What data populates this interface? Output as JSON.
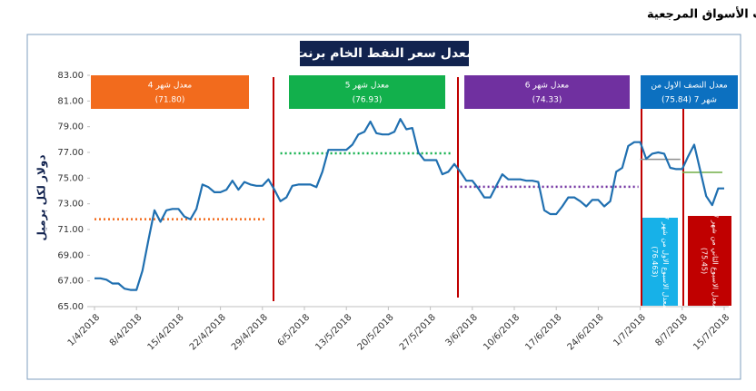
{
  "header": "النشرة الأسبوعية  لأسعار النفط الخام برنت ومشتقاته حسب الأسواق المرجعية",
  "chart_data": {
    "type": "line",
    "title": "معدل سعر النفط الخام  برنت",
    "ylabel": "دولار لكل برميل",
    "color": "#1f6fb0",
    "categories": [
      "1/4/2018",
      null,
      null,
      null,
      null,
      null,
      null,
      "8/4/2018",
      null,
      null,
      null,
      null,
      null,
      null,
      "15/4/2018",
      null,
      null,
      null,
      null,
      null,
      null,
      "22/4/2018",
      null,
      null,
      null,
      null,
      null,
      null,
      "29/4/2018",
      null,
      null,
      null,
      null,
      null,
      null,
      "6/5/2018",
      null,
      null,
      null,
      null,
      null,
      null,
      "13/5/2018",
      null,
      null,
      null,
      null,
      null,
      null,
      "20/5/2018",
      null,
      null,
      null,
      null,
      null,
      null,
      "27/5/2018",
      null,
      null,
      null,
      null,
      null,
      null,
      "3/6/2018",
      null,
      null,
      null,
      null,
      null,
      null,
      "10/6/2018",
      null,
      null,
      null,
      null,
      null,
      null,
      "17/6/2018",
      null,
      null,
      null,
      null,
      null,
      null,
      "24/6/2018",
      null,
      null,
      null,
      null,
      null,
      null,
      "1/7/2018",
      null,
      null,
      null,
      null,
      null,
      null,
      "8/7/2018",
      null,
      null,
      null,
      null,
      null,
      null,
      "15/7/2018"
    ],
    "values": [
      67.2,
      67.2,
      67.1,
      66.8,
      66.8,
      66.4,
      66.3,
      66.3,
      67.8,
      70.2,
      72.5,
      71.6,
      72.5,
      72.6,
      72.6,
      72.0,
      71.8,
      72.6,
      74.5,
      74.3,
      73.9,
      73.9,
      74.1,
      74.8,
      74.1,
      74.7,
      74.5,
      74.4,
      74.4,
      74.9,
      74.1,
      73.2,
      73.5,
      74.4,
      74.5,
      74.5,
      74.5,
      74.3,
      75.5,
      77.2,
      77.2,
      77.2,
      77.2,
      77.6,
      78.4,
      78.6,
      79.4,
      78.5,
      78.4,
      78.4,
      78.6,
      79.6,
      78.8,
      78.9,
      77.0,
      76.4,
      76.4,
      76.4,
      75.3,
      75.5,
      76.1,
      75.5,
      74.8,
      74.8,
      74.2,
      73.5,
      73.5,
      74.4,
      75.3,
      74.9,
      74.9,
      74.9,
      74.8,
      74.8,
      74.7,
      72.5,
      72.2,
      72.2,
      72.8,
      73.5,
      73.5,
      73.2,
      72.8,
      73.3,
      73.3,
      72.8,
      73.2,
      75.5,
      75.8,
      77.5,
      77.8,
      77.8,
      76.5,
      76.9,
      77.0,
      76.9,
      75.8,
      75.7,
      75.7,
      76.7,
      77.6,
      75.6,
      73.6,
      72.9,
      74.2,
      74.2
    ],
    "ylim": [
      65,
      83
    ],
    "yticks": [
      {
        "value": 65,
        "label": "65.00"
      },
      {
        "value": 67,
        "label": "67.00"
      },
      {
        "value": 69,
        "label": "69.00"
      },
      {
        "value": 71,
        "label": "71.00"
      },
      {
        "value": 73,
        "label": "73.00"
      },
      {
        "value": 75,
        "label": "75.00"
      },
      {
        "value": 77,
        "label": "77.00"
      },
      {
        "value": 79,
        "label": "79.00"
      },
      {
        "value": 81,
        "label": "81.00"
      },
      {
        "value": 83,
        "label": "83.00"
      }
    ],
    "grid": false,
    "annotations": [
      {
        "label": "معدل شهر 4",
        "value": 71.8,
        "value_label": "(71.80)",
        "color": "#f26b1d"
      },
      {
        "label": "معدل شهر 5",
        "value": 76.93,
        "value_label": "(76.93)",
        "color": "#12b04c"
      },
      {
        "label": "معدل شهر 6",
        "value": 74.33,
        "value_label": "(74.33)",
        "color": "#7030a0"
      },
      {
        "label": "معدل النصف الاول من",
        "value_label": "شهر 7 (75.84)",
        "color": "#0c70c0"
      },
      {
        "label": "معدل الاسبوع الاول من شهر 7",
        "value": 76.463,
        "value_label": "(76.463)",
        "color": "#17b1e8",
        "line_color": "#8c8c8c"
      },
      {
        "label": "معدل الاسبوع الثاني من شهر 7",
        "value": 75.45,
        "value_label": "(75.45)",
        "color": "#c00000",
        "line_color": "#70ad47"
      }
    ]
  }
}
